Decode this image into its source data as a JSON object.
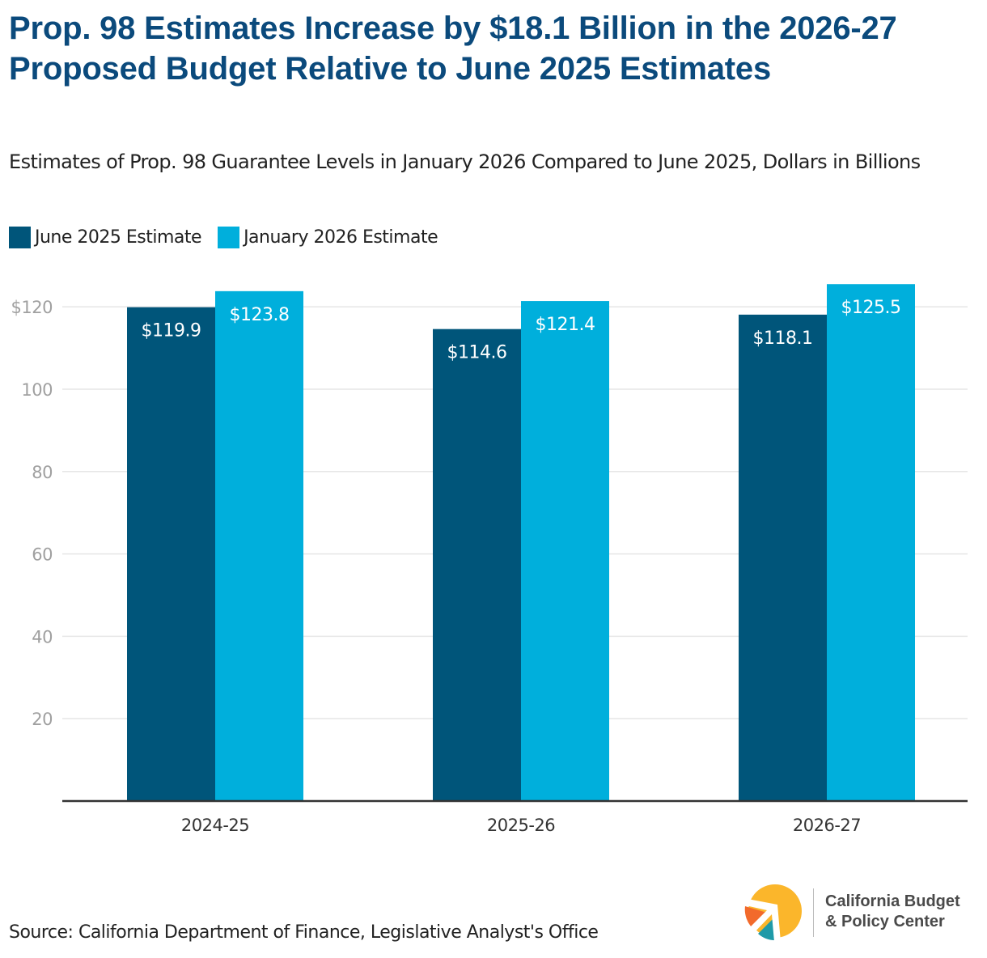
{
  "title": "Prop. 98 Estimates Increase by $18.1 Billion in the 2026-27 Proposed Budget Relative to June 2025 Estimates",
  "subtitle": "Estimates of Prop. 98 Guarantee Levels in January 2026 Compared to June 2025, Dollars in Billions",
  "colors": {
    "title": "#0b4a7c",
    "june": "#00557a",
    "january": "#00afdc",
    "grid": "#e6e6e6",
    "axis": "#333333",
    "tick_label": "#a0a0a0"
  },
  "chart_data": {
    "type": "bar",
    "title": "Prop. 98 Estimates Increase by $18.1 Billion in the 2026-27 Proposed Budget Relative to June 2025 Estimates",
    "subtitle": "Estimates of Prop. 98 Guarantee Levels in January 2026 Compared to June 2025, Dollars in Billions",
    "xlabel": "",
    "ylabel": "",
    "categories": [
      "2024-25",
      "2025-26",
      "2026-27"
    ],
    "series": [
      {
        "name": "June 2025 Estimate",
        "color": "#00557a",
        "values": [
          119.9,
          114.6,
          118.1
        ],
        "labels": [
          "$119.9",
          "$114.6",
          "$118.1"
        ]
      },
      {
        "name": "January 2026 Estimate",
        "color": "#00afdc",
        "values": [
          123.8,
          121.4,
          125.5
        ],
        "labels": [
          "$123.8",
          "$121.4",
          "$125.5"
        ]
      }
    ],
    "ylim": [
      0,
      120
    ],
    "yticks": [
      20,
      40,
      60,
      80,
      100,
      120
    ],
    "ytick_labels": [
      "20",
      "40",
      "60",
      "80",
      "100",
      "$120"
    ],
    "grid": true,
    "legend_position": "top-left"
  },
  "legend": [
    {
      "label": "June 2025 Estimate",
      "color": "#00557a"
    },
    {
      "label": "January 2026 Estimate",
      "color": "#00afdc"
    }
  ],
  "source": "Source: California Department of Finance, Legislative Analyst's Office",
  "logo": {
    "line1": "California Budget",
    "line2": "& Policy Center",
    "icon": "cbpc-logo-icon"
  }
}
